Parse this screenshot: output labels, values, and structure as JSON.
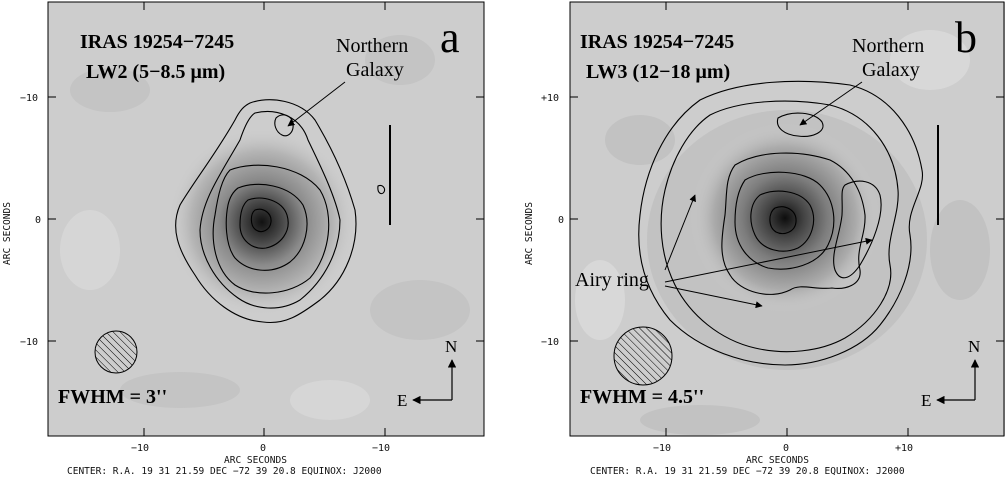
{
  "figure": {
    "panels": [
      {
        "letter": "a",
        "title_line1": "IRAS 19254−7245",
        "title_line2": "LW2 (5−8.5 μm)",
        "annotation": "Northern\nGalaxy",
        "fwhm": "FWHM = 3''",
        "compass_n": "N",
        "compass_e": "E",
        "x_ticks": [
          "−10",
          "0",
          "−10"
        ],
        "y_ticks": [
          "−10",
          "0",
          "−10"
        ],
        "xlabel": "ARC SECONDS",
        "ylabel": "ARC SECONDS",
        "footer": "CENTER: R.A. 19 31 21.59 DEC −72 39 20.8  EQUINOX: J2000"
      },
      {
        "letter": "b",
        "title_line1": "IRAS 19254−7245",
        "title_line2": "LW3 (12−18 μm)",
        "annotation": "Northern\nGalaxy",
        "annotation2": "Airy ring",
        "fwhm": "FWHM = 4.5''",
        "compass_n": "N",
        "compass_e": "E",
        "x_ticks": [
          "−10",
          "0",
          "+10"
        ],
        "y_ticks": [
          "+10",
          "0",
          "−10"
        ],
        "xlabel": "ARC SECONDS",
        "ylabel": "ARC SECONDS",
        "footer": "CENTER: R.A. 19 31 21.59 DEC −72 39 20.8  EQUINOX: J2000"
      }
    ]
  }
}
